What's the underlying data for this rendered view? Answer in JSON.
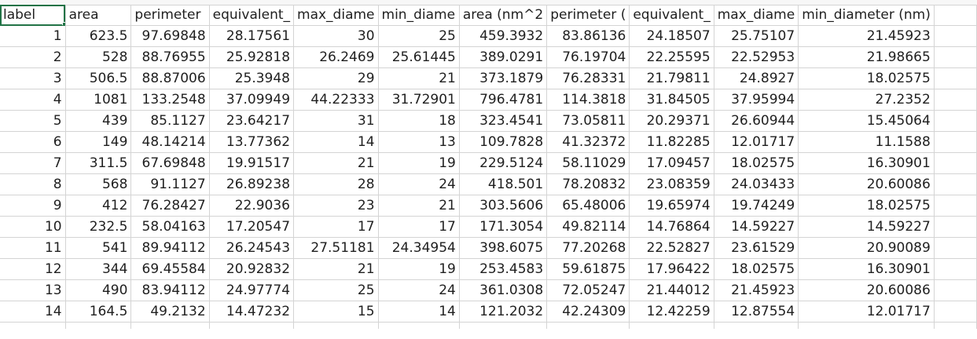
{
  "sheet": {
    "headers": [
      "label",
      "area",
      "perimeter",
      "equivalent_",
      "max_diame",
      "min_diame",
      "area (nm^2",
      "perimeter (",
      "equivalent_",
      "max_diame",
      "min_diameter (nm)"
    ],
    "rows": [
      [
        "1",
        "623.5",
        "97.69848",
        "28.17561",
        "30",
        "25",
        "459.3932",
        "83.86136",
        "24.18507",
        "25.75107",
        "21.45923"
      ],
      [
        "2",
        "528",
        "88.76955",
        "25.92818",
        "26.2469",
        "25.61445",
        "389.0291",
        "76.19704",
        "22.25595",
        "22.52953",
        "21.98665"
      ],
      [
        "3",
        "506.5",
        "88.87006",
        "25.3948",
        "29",
        "21",
        "373.1879",
        "76.28331",
        "21.79811",
        "24.8927",
        "18.02575"
      ],
      [
        "4",
        "1081",
        "133.2548",
        "37.09949",
        "44.22333",
        "31.72901",
        "796.4781",
        "114.3818",
        "31.84505",
        "37.95994",
        "27.2352"
      ],
      [
        "5",
        "439",
        "85.1127",
        "23.64217",
        "31",
        "18",
        "323.4541",
        "73.05811",
        "20.29371",
        "26.60944",
        "15.45064"
      ],
      [
        "6",
        "149",
        "48.14214",
        "13.77362",
        "14",
        "13",
        "109.7828",
        "41.32372",
        "11.82285",
        "12.01717",
        "11.1588"
      ],
      [
        "7",
        "311.5",
        "67.69848",
        "19.91517",
        "21",
        "19",
        "229.5124",
        "58.11029",
        "17.09457",
        "18.02575",
        "16.30901"
      ],
      [
        "8",
        "568",
        "91.1127",
        "26.89238",
        "28",
        "24",
        "418.501",
        "78.20832",
        "23.08359",
        "24.03433",
        "20.60086"
      ],
      [
        "9",
        "412",
        "76.28427",
        "22.9036",
        "23",
        "21",
        "303.5606",
        "65.48006",
        "19.65974",
        "19.74249",
        "18.02575"
      ],
      [
        "10",
        "232.5",
        "58.04163",
        "17.20547",
        "17",
        "17",
        "171.3054",
        "49.82114",
        "14.76864",
        "14.59227",
        "14.59227"
      ],
      [
        "11",
        "541",
        "89.94112",
        "26.24543",
        "27.51181",
        "24.34954",
        "398.6075",
        "77.20268",
        "22.52827",
        "23.61529",
        "20.90089"
      ],
      [
        "12",
        "344",
        "69.45584",
        "20.92832",
        "21",
        "19",
        "253.4583",
        "59.61875",
        "17.96422",
        "18.02575",
        "16.30901"
      ],
      [
        "13",
        "490",
        "83.94112",
        "24.97774",
        "25",
        "24",
        "361.0308",
        "72.05247",
        "21.44012",
        "21.45923",
        "20.60086"
      ],
      [
        "14",
        "164.5",
        "49.2132",
        "14.47232",
        "15",
        "14",
        "121.2032",
        "42.24309",
        "12.42259",
        "12.87554",
        "12.01717"
      ]
    ]
  }
}
